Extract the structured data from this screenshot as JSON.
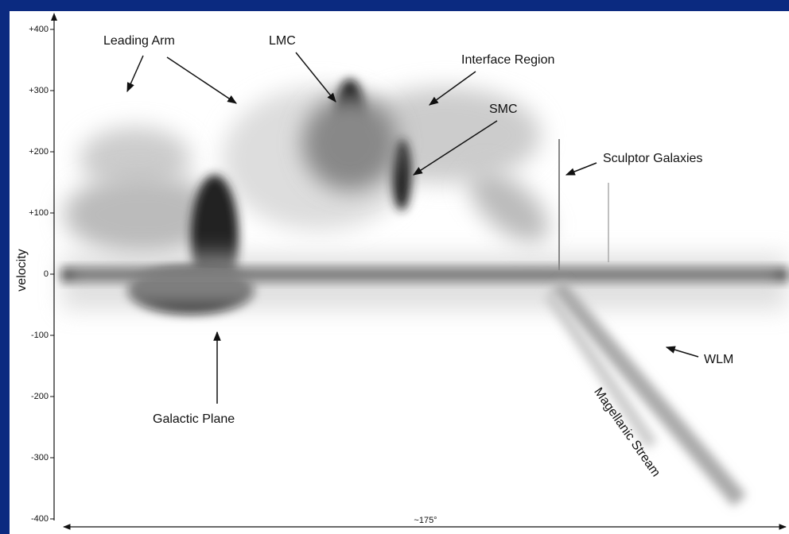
{
  "chart_data": {
    "type": "image",
    "ylabel": "velocity",
    "ylim": [
      -400,
      400
    ],
    "yticks": [
      {
        "value": 400,
        "label": "+400"
      },
      {
        "value": 300,
        "label": "+300"
      },
      {
        "value": 200,
        "label": "+200"
      },
      {
        "value": 100,
        "label": "+100"
      },
      0,
      -100,
      -200,
      -300,
      -400
    ],
    "xspan_label": "~175°",
    "annotations": [
      "Leading Arm",
      "LMC",
      "Interface Region",
      "SMC",
      "Sculptor Galaxies",
      "WLM",
      "Galactic Plane",
      "Magellanic Stream"
    ]
  }
}
